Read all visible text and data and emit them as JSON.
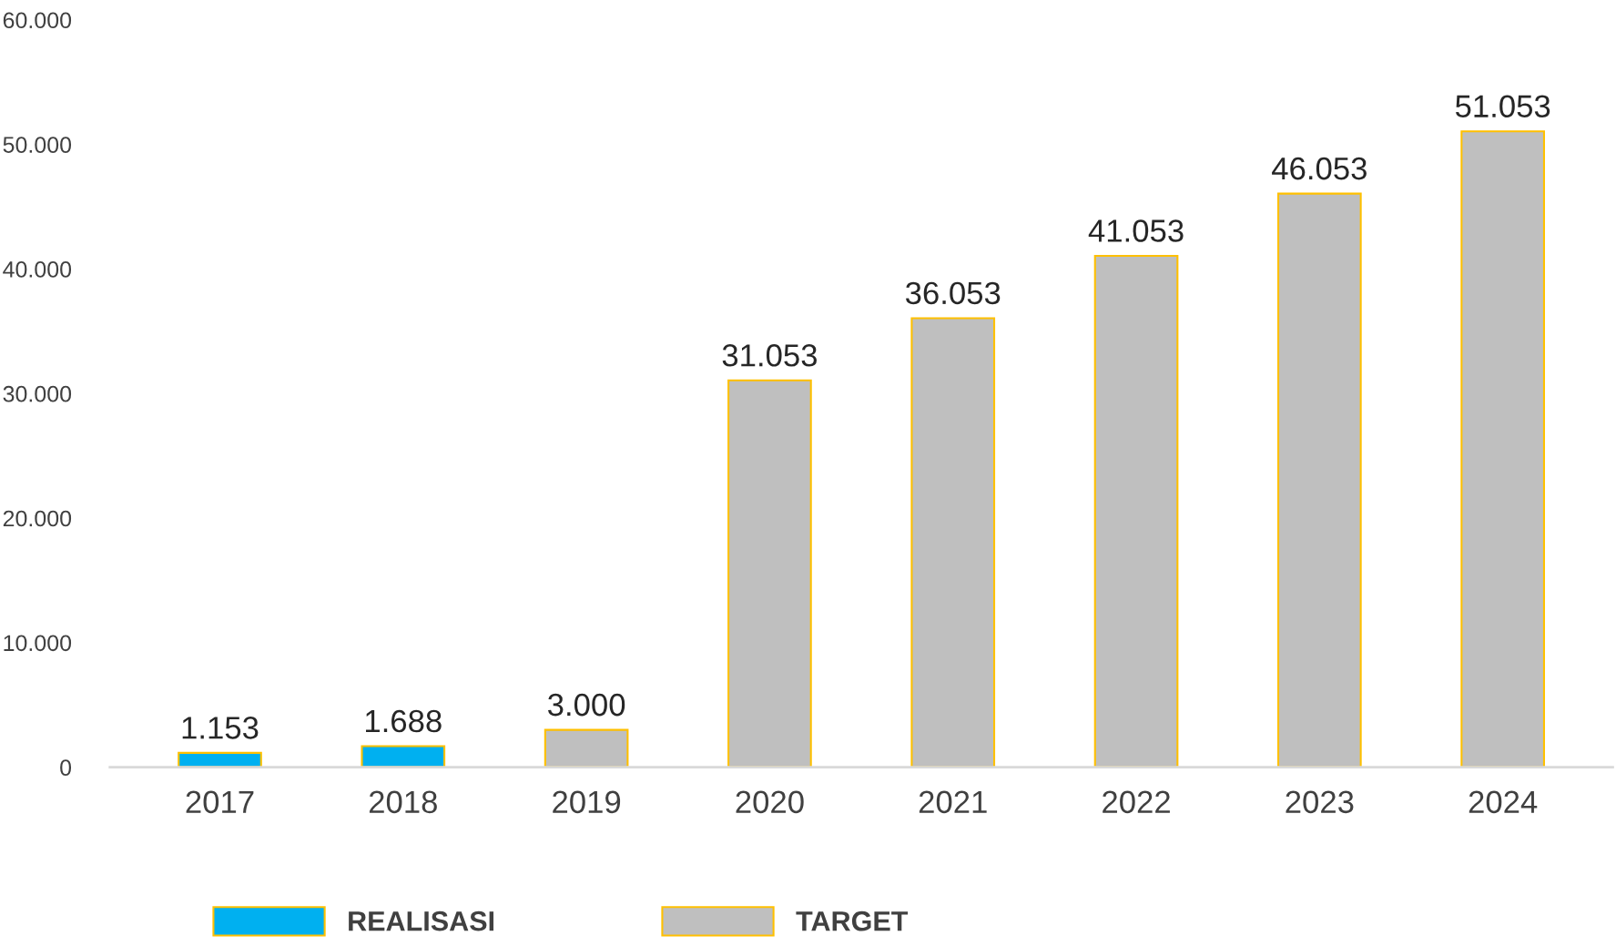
{
  "chart_data": {
    "type": "bar",
    "stacked": true,
    "categories": [
      "2017",
      "2018",
      "2019",
      "2020",
      "2021",
      "2022",
      "2023",
      "2024"
    ],
    "series": [
      {
        "name": "REALISASI",
        "color": "#00b0f0",
        "values": [
          1153,
          1688,
          null,
          null,
          null,
          null,
          null,
          null
        ],
        "value_labels": [
          "1.153",
          "1.688",
          null,
          null,
          null,
          null,
          null,
          null
        ]
      },
      {
        "name": "TARGET",
        "color": "#bfbfbf",
        "values": [
          null,
          null,
          3000,
          31053,
          36053,
          41053,
          46053,
          51053
        ],
        "value_labels": [
          null,
          null,
          "3.000",
          "31.053",
          "36.053",
          "41.053",
          "46.053",
          "51.053"
        ]
      }
    ],
    "ylim": [
      0,
      60000
    ],
    "yticks": [
      0,
      {
        "value": 10000,
        "label": "10.000"
      },
      {
        "value": 20000,
        "label": "20.000"
      },
      {
        "value": 30000,
        "label": "30.000"
      },
      {
        "value": 40000,
        "label": "40.000"
      },
      {
        "value": 50000,
        "label": "50.000"
      },
      {
        "value": 60000,
        "label": "60.000"
      }
    ],
    "grid": false,
    "legend": "bottom"
  }
}
